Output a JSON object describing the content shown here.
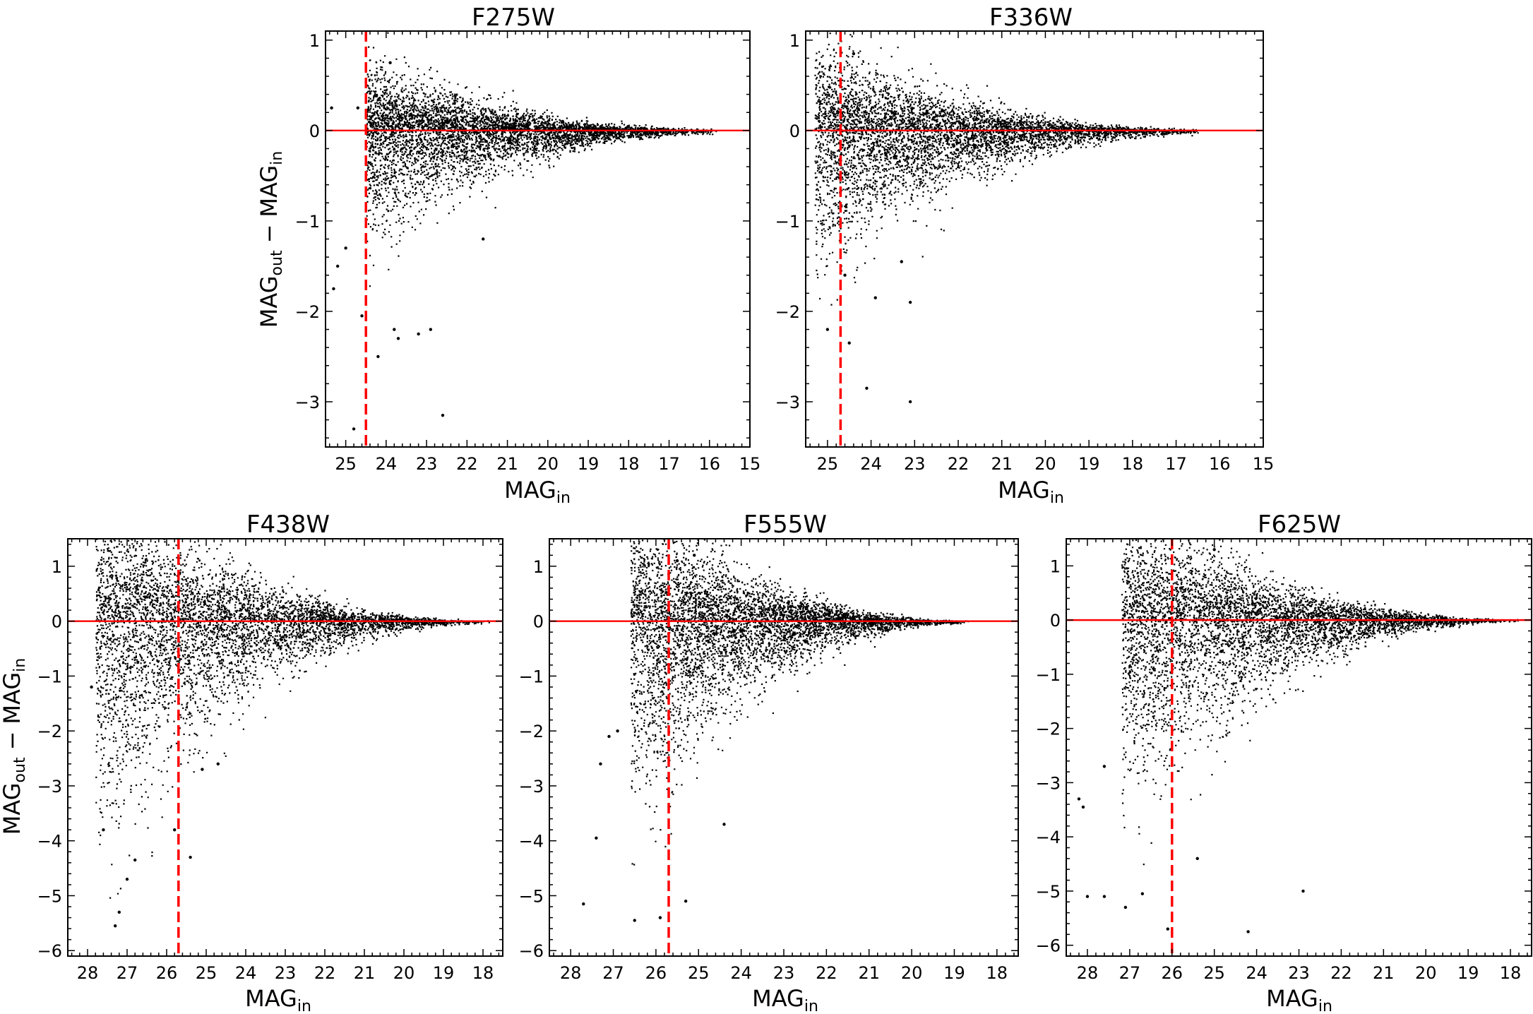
{
  "figure": {
    "y_axis_label_main": "MAG",
    "y_axis_label_out_sub": "out",
    "y_axis_label_minus": "−",
    "y_axis_label_in_sub": "in",
    "x_axis_label_main": "MAG",
    "x_axis_label_sub": "in"
  },
  "chart_data": [
    {
      "type": "scatter",
      "title": "F275W",
      "xlabel": "MAGin",
      "ylabel": "MAGout − MAGin",
      "xlim": [
        25.5,
        15
      ],
      "ylim": [
        1.1,
        -3.5
      ],
      "xticks": [
        25,
        24,
        23,
        22,
        21,
        20,
        19,
        18,
        17,
        16,
        15
      ],
      "yticks": [
        1,
        0,
        -1,
        -2,
        -3
      ],
      "zero_line": 0,
      "completeness_limit": 24.5,
      "magnitude_range": [
        24.5,
        15.7
      ],
      "y_spread_at_faint_end": 0.35,
      "outliers": [
        [
          25.3,
          -1.75
        ],
        [
          25.2,
          -1.5
        ],
        [
          25.0,
          -1.3
        ],
        [
          24.8,
          -3.3
        ],
        [
          24.6,
          -2.05
        ],
        [
          24.2,
          -2.5
        ],
        [
          23.8,
          -2.2
        ],
        [
          23.7,
          -2.3
        ],
        [
          23.2,
          -2.25
        ],
        [
          22.9,
          -2.2
        ],
        [
          22.6,
          -3.15
        ],
        [
          21.6,
          -1.2
        ],
        [
          25.35,
          0.25
        ],
        [
          24.7,
          0.25
        ],
        [
          23.9,
          0.75
        ]
      ]
    },
    {
      "type": "scatter",
      "title": "F336W",
      "xlabel": "MAGin",
      "ylabel": "MAGout − MAGin",
      "xlim": [
        25.5,
        15
      ],
      "ylim": [
        1.1,
        -3.5
      ],
      "xticks": [
        25,
        24,
        23,
        22,
        21,
        20,
        19,
        18,
        17,
        16,
        15
      ],
      "yticks": [
        1,
        0,
        -1,
        -2,
        -3
      ],
      "zero_line": 0,
      "completeness_limit": 24.7,
      "magnitude_range": [
        25.3,
        16.3
      ],
      "y_spread_at_faint_end": 0.45,
      "outliers": [
        [
          25.0,
          -2.2
        ],
        [
          24.5,
          -2.35
        ],
        [
          24.1,
          -2.85
        ],
        [
          23.9,
          -1.85
        ],
        [
          23.1,
          -3.0
        ],
        [
          23.1,
          -1.9
        ],
        [
          23.3,
          -1.45
        ],
        [
          24.6,
          -1.6
        ],
        [
          24.4,
          0.85
        ]
      ]
    },
    {
      "type": "scatter",
      "title": "F438W",
      "xlabel": "MAGin",
      "ylabel": "MAGout − MAGin",
      "xlim": [
        28.5,
        17.5
      ],
      "ylim": [
        1.5,
        -6.1
      ],
      "xticks": [
        28,
        27,
        26,
        25,
        24,
        23,
        22,
        21,
        20,
        19,
        18
      ],
      "yticks": [
        1,
        0,
        -1,
        -2,
        -3,
        -4,
        -5,
        -6
      ],
      "zero_line": 0,
      "completeness_limit": 25.7,
      "magnitude_range": [
        27.8,
        17.8
      ],
      "y_spread_at_faint_end": 1.1,
      "outliers": [
        [
          27.3,
          -5.55
        ],
        [
          27.2,
          -5.3
        ],
        [
          27.0,
          -4.7
        ],
        [
          26.8,
          -4.35
        ],
        [
          25.4,
          -4.3
        ],
        [
          25.1,
          -2.7
        ],
        [
          24.7,
          -2.6
        ],
        [
          27.6,
          -3.8
        ],
        [
          27.9,
          -1.2
        ],
        [
          25.8,
          -3.8
        ]
      ]
    },
    {
      "type": "scatter",
      "title": "F555W",
      "xlabel": "MAGin",
      "ylabel": "MAGout − MAGin",
      "xlim": [
        28.5,
        17.5
      ],
      "ylim": [
        1.5,
        -6.1
      ],
      "xticks": [
        28,
        27,
        26,
        25,
        24,
        23,
        22,
        21,
        20,
        19,
        18
      ],
      "yticks": [
        1,
        0,
        -1,
        -2,
        -3,
        -4,
        -5,
        -6
      ],
      "zero_line": 0,
      "completeness_limit": 25.7,
      "magnitude_range": [
        26.6,
        18.6
      ],
      "y_spread_at_faint_end": 1.0,
      "outliers": [
        [
          27.7,
          -5.15
        ],
        [
          26.5,
          -5.45
        ],
        [
          25.9,
          -5.4
        ],
        [
          25.3,
          -5.1
        ],
        [
          24.4,
          -3.7
        ],
        [
          27.4,
          -3.95
        ],
        [
          27.3,
          -2.6
        ],
        [
          27.1,
          -2.1
        ],
        [
          26.9,
          -2.0
        ],
        [
          25.5,
          1.1
        ],
        [
          25.1,
          1.2
        ]
      ]
    },
    {
      "type": "scatter",
      "title": "F625W",
      "xlabel": "MAGin",
      "ylabel": "MAGout − MAGin",
      "xlim": [
        28.5,
        17.5
      ],
      "ylim": [
        1.5,
        -6.2
      ],
      "xticks": [
        28,
        27,
        26,
        25,
        24,
        23,
        22,
        21,
        20,
        19,
        18
      ],
      "yticks": [
        1,
        0,
        -1,
        -2,
        -3,
        -4,
        -5,
        -6
      ],
      "zero_line": 0,
      "completeness_limit": 26.0,
      "magnitude_range": [
        27.2,
        17.8
      ],
      "y_spread_at_faint_end": 1.0,
      "outliers": [
        [
          28.2,
          -3.3
        ],
        [
          28.0,
          -5.1
        ],
        [
          27.6,
          -5.1
        ],
        [
          27.1,
          -5.3
        ],
        [
          26.7,
          -5.05
        ],
        [
          24.2,
          -5.75
        ],
        [
          22.9,
          -5.0
        ],
        [
          26.1,
          -5.7
        ],
        [
          25.4,
          -4.4
        ],
        [
          28.1,
          -3.45
        ],
        [
          27.6,
          -2.7
        ],
        [
          25.0,
          1.3
        ]
      ]
    }
  ]
}
